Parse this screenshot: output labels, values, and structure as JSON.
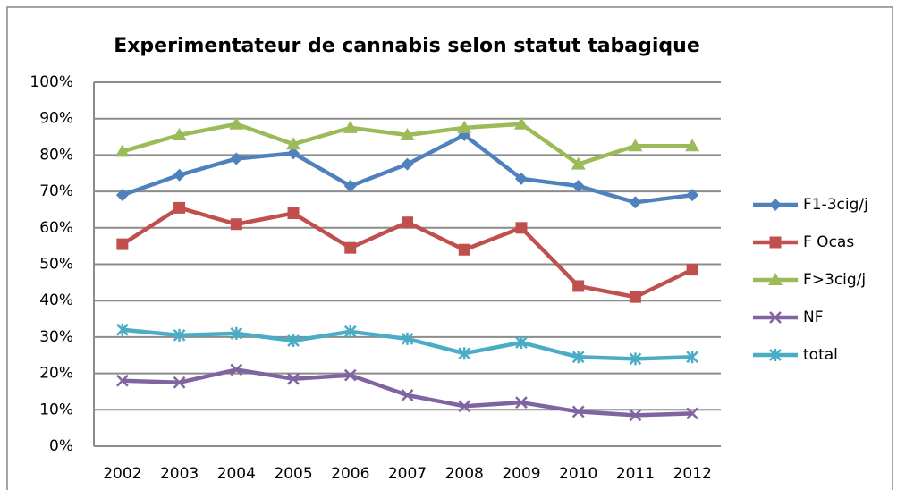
{
  "chart_data": {
    "type": "line",
    "title": "Experimentateur de cannabis selon statut tabagique",
    "categories": [
      "2002",
      "2003",
      "2004",
      "2005",
      "2006",
      "2007",
      "2008",
      "2009",
      "2010",
      "2011",
      "2012"
    ],
    "series": [
      {
        "name": "F1-3cig/j",
        "color": "#4f81bd",
        "marker": "diamond",
        "values": [
          69,
          74.5,
          79,
          80.5,
          71.5,
          77.5,
          85.5,
          73.5,
          71.5,
          67,
          69
        ]
      },
      {
        "name": "F Ocas",
        "color": "#c0504d",
        "marker": "square",
        "values": [
          55.5,
          65.5,
          61,
          64,
          54.5,
          61.5,
          54,
          60,
          44,
          41,
          48.5
        ]
      },
      {
        "name": "F>3cig/j",
        "color": "#9bbb59",
        "marker": "triangle",
        "values": [
          81,
          85.5,
          88.5,
          83,
          87.5,
          85.5,
          87.5,
          88.5,
          77.5,
          82.5,
          82.5
        ]
      },
      {
        "name": "NF",
        "color": "#8064a2",
        "marker": "x",
        "values": [
          18,
          17.5,
          21,
          18.5,
          19.5,
          14,
          11,
          12,
          9.5,
          8.5,
          9
        ]
      },
      {
        "name": "total",
        "color": "#4bacc6",
        "marker": "star",
        "values": [
          32,
          30.5,
          31,
          29,
          31.5,
          29.5,
          25.5,
          28.5,
          24.5,
          24,
          24.5
        ]
      }
    ],
    "ylim": [
      0,
      100
    ],
    "yticks": [
      {
        "value": 0,
        "label": "0%"
      },
      {
        "value": 10,
        "label": "10%"
      },
      {
        "value": 20,
        "label": "20%"
      },
      {
        "value": 30,
        "label": "30%"
      },
      {
        "value": 40,
        "label": "40%"
      },
      {
        "value": 50,
        "label": "50%"
      },
      {
        "value": 60,
        "label": "60%"
      },
      {
        "value": 70,
        "label": "70%"
      },
      {
        "value": 80,
        "label": "80%"
      },
      {
        "value": 90,
        "label": "90%"
      },
      {
        "value": 100,
        "label": "100%"
      }
    ],
    "grid": true,
    "legend": "right"
  }
}
